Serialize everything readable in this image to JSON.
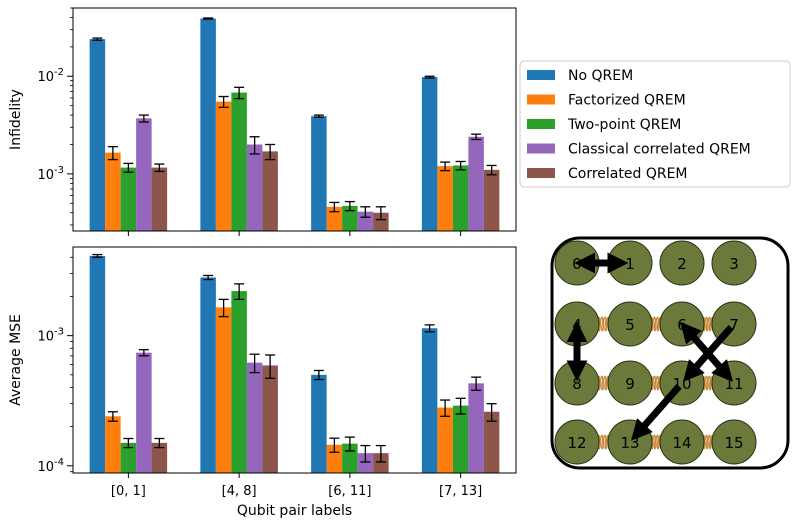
{
  "chart_data": [
    {
      "type": "bar",
      "panel": "top",
      "ylabel": "Infidelity",
      "yscale": "log",
      "ylim": [
        0.00026,
        0.05
      ],
      "yticks": [
        {
          "value": 0.001,
          "label": "10^-3"
        },
        {
          "value": 0.01,
          "label": "10^-2"
        }
      ],
      "categories": [
        "[0, 1]",
        "[4, 8]",
        "[6, 11]",
        "[7, 13]"
      ],
      "series": [
        {
          "name": "No QREM",
          "color": "#1f77b4",
          "values": [
            0.024,
            0.039,
            0.0039,
            0.0098
          ],
          "errors": [
            0.0006,
            0.0005,
            0.0001,
            0.0002
          ]
        },
        {
          "name": "Factorized QREM",
          "color": "#ff7f0e",
          "values": [
            0.00165,
            0.0055,
            0.00046,
            0.0012
          ],
          "errors": [
            0.00025,
            0.0007,
            5e-05,
            0.00012
          ]
        },
        {
          "name": "Two-point QREM",
          "color": "#2ca02c",
          "values": [
            0.00116,
            0.0068,
            0.00047,
            0.00122
          ],
          "errors": [
            0.00012,
            0.0009,
            5e-05,
            0.00012
          ]
        },
        {
          "name": "Classical correlated QREM",
          "color": "#9467bd",
          "values": [
            0.0037,
            0.002,
            0.00041,
            0.0024
          ],
          "errors": [
            0.0003,
            0.0004,
            5e-05,
            0.00015
          ]
        },
        {
          "name": "Correlated QREM",
          "color": "#8c564b",
          "values": [
            0.00116,
            0.0017,
            0.0004,
            0.0011
          ],
          "errors": [
            0.0001,
            0.0003,
            6e-05,
            0.00012
          ]
        }
      ]
    },
    {
      "type": "bar",
      "panel": "bottom",
      "ylabel": "Average MSE",
      "xlabel": "Qubit pair labels",
      "yscale": "log",
      "ylim": [
        8.8e-05,
        0.0048
      ],
      "yticks": [
        {
          "value": 0.0001,
          "label": "10^-4"
        },
        {
          "value": 0.001,
          "label": "10^-3"
        }
      ],
      "categories": [
        "[0, 1]",
        "[4, 8]",
        "[6, 11]",
        "[7, 13]"
      ],
      "series": [
        {
          "name": "No QREM",
          "color": "#1f77b4",
          "values": [
            0.0041,
            0.0028,
            0.0005,
            0.00114
          ],
          "errors": [
            0.0001,
            0.0001,
            4e-05,
            7e-05
          ]
        },
        {
          "name": "Factorized QREM",
          "color": "#ff7f0e",
          "values": [
            0.00024,
            0.00165,
            0.000145,
            0.00028
          ],
          "errors": [
            2e-05,
            0.00025,
            1.8e-05,
            4e-05
          ]
        },
        {
          "name": "Two-point QREM",
          "color": "#2ca02c",
          "values": [
            0.00015,
            0.0022,
            0.000148,
            0.00029
          ],
          "errors": [
            1.2e-05,
            0.0003,
            1.8e-05,
            4e-05
          ]
        },
        {
          "name": "Classical correlated QREM",
          "color": "#9467bd",
          "values": [
            0.00074,
            0.00062,
            0.000125,
            0.00043
          ],
          "errors": [
            4e-05,
            0.0001,
            1.8e-05,
            5e-05
          ]
        },
        {
          "name": "Correlated QREM",
          "color": "#8c564b",
          "values": [
            0.00015,
            0.00059,
            0.000125,
            0.00026
          ],
          "errors": [
            1.2e-05,
            0.00012,
            1.8e-05,
            4e-05
          ]
        }
      ]
    }
  ],
  "legend": {
    "placement": "right of top panel",
    "entries": [
      "No QREM",
      "Factorized QREM",
      "Two-point QREM",
      "Classical correlated QREM",
      "Correlated QREM"
    ]
  },
  "qubit_diagram": {
    "qubits": [
      "0",
      "1",
      "2",
      "3",
      "4",
      "5",
      "6",
      "7",
      "8",
      "9",
      "10",
      "11",
      "12",
      "13",
      "14",
      "15"
    ],
    "node_color": "#6b7a3a",
    "coupler_color": "#c98a3a",
    "couplers": [
      [
        4,
        5
      ],
      [
        5,
        6
      ],
      [
        6,
        7
      ],
      [
        8,
        9
      ],
      [
        9,
        10
      ],
      [
        10,
        11
      ],
      [
        12,
        13
      ],
      [
        13,
        14
      ],
      [
        14,
        15
      ]
    ],
    "double_arrows": [
      [
        0,
        1
      ],
      [
        4,
        8
      ],
      [
        6,
        11
      ]
    ],
    "single_arrows": [
      [
        7,
        10
      ],
      [
        10,
        13
      ]
    ]
  }
}
